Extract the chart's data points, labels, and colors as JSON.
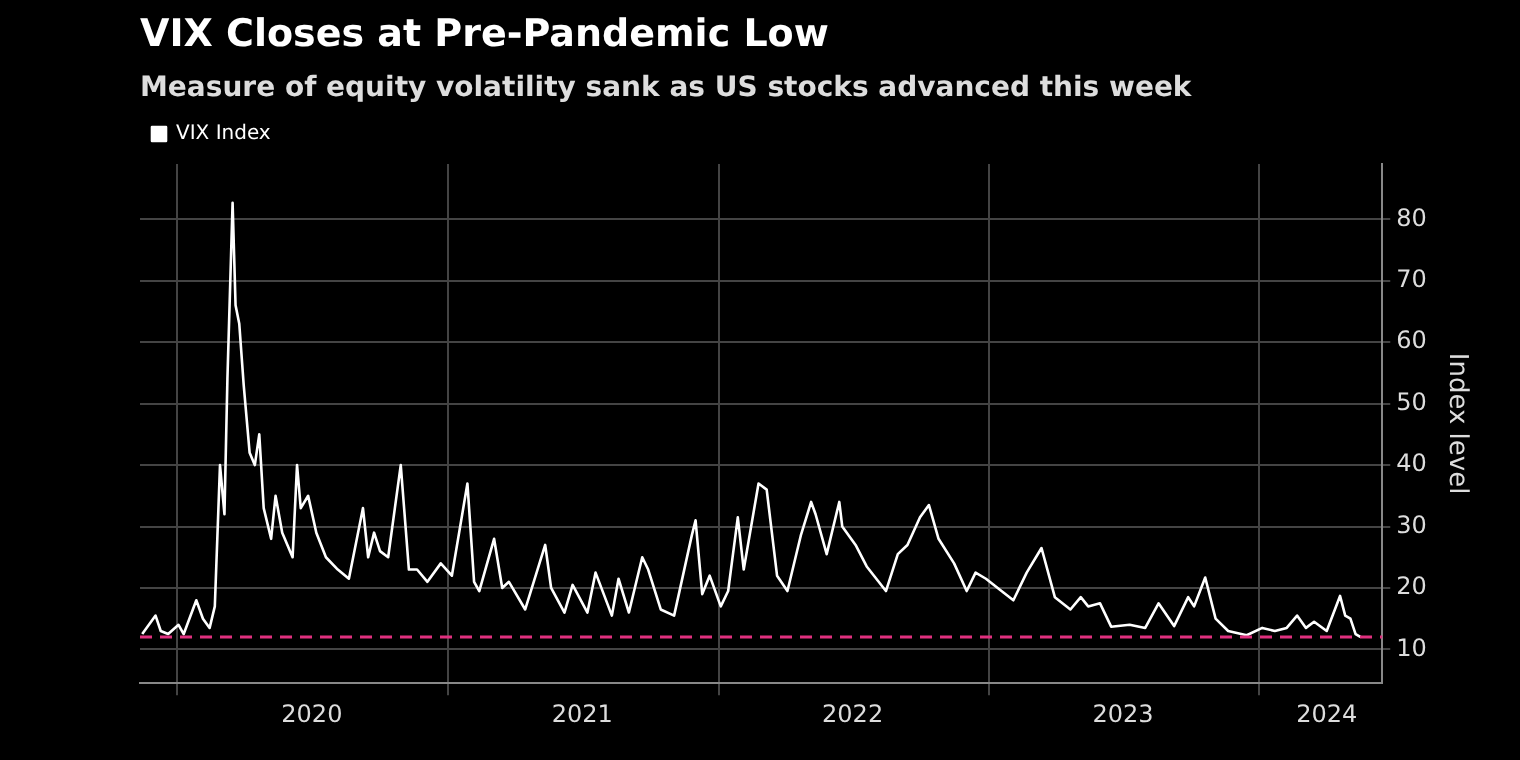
{
  "chart_data": {
    "type": "line",
    "title": "VIX Closes at Pre-Pandemic Low",
    "subtitle": "Measure of equity volatility sank as US stocks advanced this week",
    "ylabel": "Index level",
    "xlim": [
      "2019-11-12",
      "2024-06-15"
    ],
    "xticks": [
      {
        "value": "2020-01-01",
        "label": null
      },
      {
        "value": "2020-07-01",
        "label": "2020"
      },
      {
        "value": "2021-01-01",
        "label": null
      },
      {
        "value": "2021-07-01",
        "label": "2021"
      },
      {
        "value": "2022-01-01",
        "label": null
      },
      {
        "value": "2022-07-01",
        "label": "2022"
      },
      {
        "value": "2023-01-01",
        "label": null
      },
      {
        "value": "2023-07-01",
        "label": "2023"
      },
      {
        "value": "2024-01-01",
        "label": null
      },
      {
        "value": "2024-04-01",
        "label": "2024"
      }
    ],
    "ylim": [
      4.5,
      89
    ],
    "yticks": [
      10,
      20,
      30,
      40,
      50,
      60,
      70,
      80
    ],
    "grid": true,
    "legend": "top left",
    "marker": "none",
    "line_style": "solid",
    "ref_lines": [
      {
        "axis": "y",
        "value": 12,
        "label": null,
        "color": "#e0307f",
        "line_style": "dashed"
      }
    ],
    "x": [
      "2019-11-15",
      "2019-12-03",
      "2019-12-10",
      "2019-12-20",
      "2020-01-03",
      "2020-01-10",
      "2020-01-27",
      "2020-02-05",
      "2020-02-14",
      "2020-02-21",
      "2020-02-28",
      "2020-03-05",
      "2020-03-09",
      "2020-03-16",
      "2020-03-20",
      "2020-03-25",
      "2020-03-31",
      "2020-04-08",
      "2020-04-15",
      "2020-04-21",
      "2020-04-27",
      "2020-05-07",
      "2020-05-13",
      "2020-05-22",
      "2020-06-05",
      "2020-06-11",
      "2020-06-16",
      "2020-06-26",
      "2020-07-07",
      "2020-07-20",
      "2020-08-05",
      "2020-08-20",
      "2020-09-08",
      "2020-09-15",
      "2020-09-23",
      "2020-10-01",
      "2020-10-12",
      "2020-10-29",
      "2020-11-09",
      "2020-11-20",
      "2020-12-04",
      "2020-12-22",
      "2021-01-06",
      "2021-01-27",
      "2021-02-05",
      "2021-02-12",
      "2021-03-04",
      "2021-03-15",
      "2021-03-24",
      "2021-04-15",
      "2021-05-12",
      "2021-05-20",
      "2021-06-07",
      "2021-06-18",
      "2021-07-08",
      "2021-07-19",
      "2021-08-10",
      "2021-08-19",
      "2021-09-02",
      "2021-09-20",
      "2021-09-28",
      "2021-10-15",
      "2021-11-02",
      "2021-11-26",
      "2021-12-01",
      "2021-12-10",
      "2021-12-20",
      "2022-01-04",
      "2022-01-14",
      "2022-01-27",
      "2022-02-04",
      "2022-02-24",
      "2022-03-07",
      "2022-03-21",
      "2022-04-04",
      "2022-04-22",
      "2022-05-06",
      "2022-05-12",
      "2022-05-27",
      "2022-06-13",
      "2022-06-17",
      "2022-07-05",
      "2022-07-20",
      "2022-08-15",
      "2022-08-31",
      "2022-09-13",
      "2022-09-30",
      "2022-10-12",
      "2022-10-25",
      "2022-11-15",
      "2022-12-02",
      "2022-12-14",
      "2022-12-28",
      "2023-01-18",
      "2023-02-03",
      "2023-02-21",
      "2023-03-13",
      "2023-03-31",
      "2023-04-21",
      "2023-05-05",
      "2023-05-15",
      "2023-05-31",
      "2023-06-15",
      "2023-07-10",
      "2023-07-31",
      "2023-08-18",
      "2023-09-08",
      "2023-09-27",
      "2023-10-05",
      "2023-10-20",
      "2023-11-03",
      "2023-11-20",
      "2023-12-15",
      "2024-01-05",
      "2024-01-22",
      "2024-02-07",
      "2024-02-21",
      "2024-03-04",
      "2024-03-15",
      "2024-04-01",
      "2024-04-19",
      "2024-04-26",
      "2024-05-03",
      "2024-05-10",
      "2024-05-17"
    ],
    "series": [
      {
        "name": "VIX Index",
        "color": "#ffffff",
        "values": [
          12.5,
          15.5,
          13,
          12.5,
          14,
          12.5,
          18,
          15,
          13.5,
          17,
          40,
          32,
          54,
          82.7,
          66,
          63,
          53,
          42,
          40,
          45,
          33,
          28,
          35,
          29,
          25,
          40,
          33,
          35,
          29,
          25,
          23,
          21.5,
          33,
          25,
          29,
          26,
          25,
          40,
          23,
          23,
          21,
          24,
          22,
          37,
          21,
          19.5,
          28,
          20,
          21,
          16.5,
          27,
          20,
          16,
          20.5,
          16,
          22.5,
          15.5,
          21.5,
          16,
          25,
          23,
          16.5,
          15.5,
          28.6,
          31,
          19,
          22,
          17,
          19.5,
          31.5,
          23,
          37,
          36,
          22,
          19.5,
          28.5,
          34,
          32,
          25.5,
          34,
          30,
          27,
          23.5,
          19.5,
          25.5,
          27,
          31.5,
          33.5,
          28,
          24,
          19.5,
          22.5,
          21.5,
          19.5,
          18,
          22.5,
          26.5,
          18.5,
          16.5,
          18.5,
          17,
          17.5,
          13.7,
          14,
          13.5,
          17.5,
          13.8,
          18.5,
          17,
          21.7,
          15,
          13,
          12.3,
          13.5,
          13,
          13.5,
          15.5,
          13.5,
          14.5,
          13,
          18.7,
          15.5,
          15,
          12.5,
          12
        ]
      }
    ]
  }
}
